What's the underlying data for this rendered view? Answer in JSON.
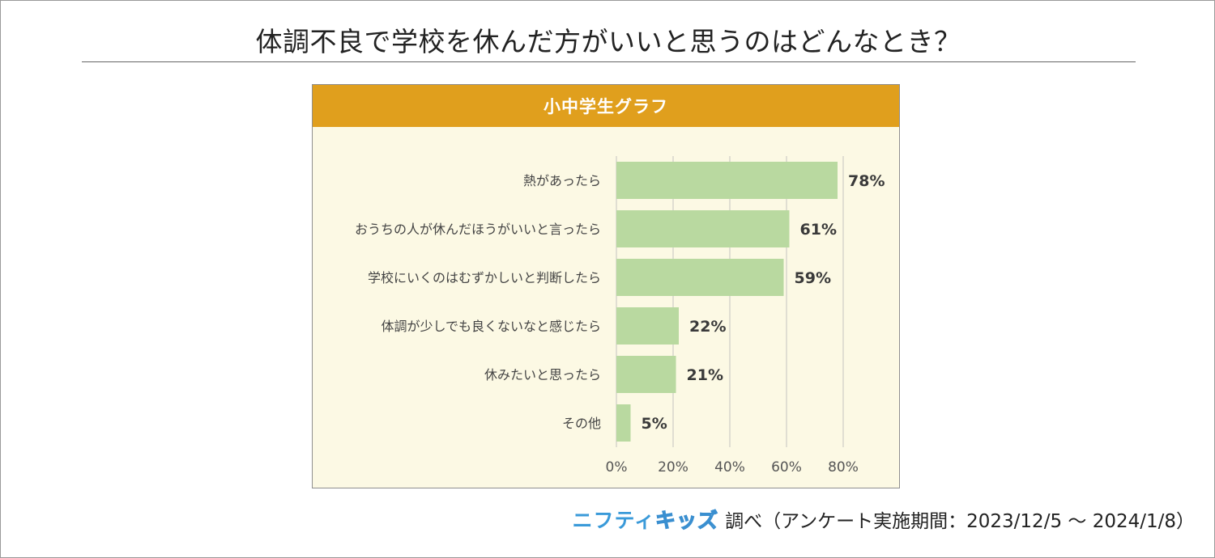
{
  "title": "体調不良で学校を休んだ方がいいと思うのはどんなとき？",
  "panel_header": "小中学生グラフ",
  "source": {
    "logo_part1": "ニフティ",
    "logo_part2": "キッズ",
    "note": "調べ（アンケート実施期間：2023/12/5 ～ 2024/1/8）"
  },
  "colors": {
    "bar": "#b9d9a0",
    "grid": "#d6d6cc",
    "header": "#e09f1d",
    "panel_bg": "#fcf9e4",
    "value_label": "#3a3a3a",
    "category_label": "#444444"
  },
  "chart_data": {
    "type": "bar",
    "orientation": "horizontal",
    "title": "小中学生グラフ",
    "categories": [
      "熱があったら",
      "おうちの人が休んだほうがいいと言ったら",
      "学校にいくのはむずかしいと判断したら",
      "体調が少しでも良くないなと感じたら",
      "休みたいと思ったら",
      "その他"
    ],
    "values": [
      78,
      61,
      59,
      22,
      21,
      5
    ],
    "value_labels": [
      "78%",
      "61%",
      "59%",
      "22%",
      "21%",
      "5%"
    ],
    "xlim": [
      0,
      80
    ],
    "x_ticks": [
      0,
      20,
      40,
      60,
      80
    ],
    "x_tick_labels": [
      "0%",
      "20%",
      "40%",
      "60%",
      "80%"
    ],
    "xlabel": "",
    "ylabel": "",
    "grid": true,
    "legend": "none"
  }
}
